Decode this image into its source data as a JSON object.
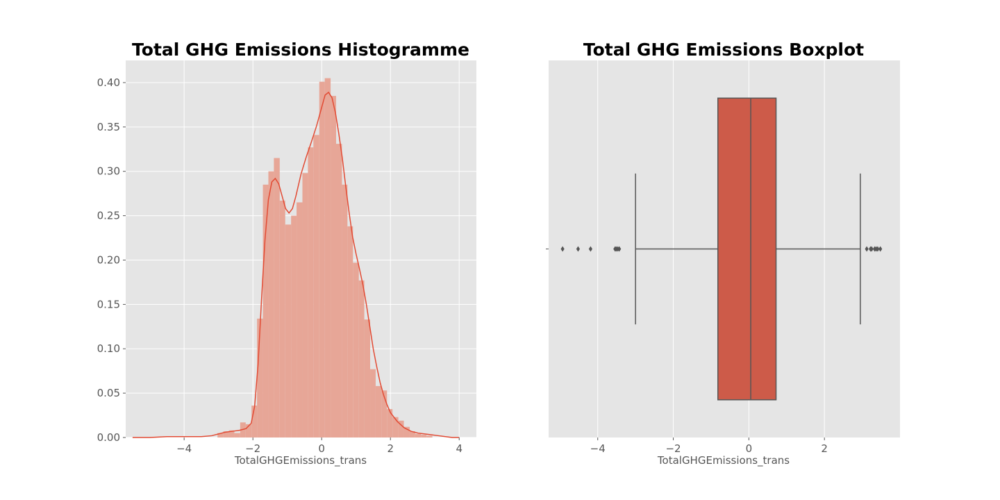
{
  "colors": {
    "figure_background": "#ffffff",
    "axes_background": "#e5e5e5",
    "grid": "#ffffff",
    "hist_fill": "#e7a697",
    "kde_line": "#e24a33",
    "box_fill": "#cd5b49",
    "box_edge": "#555555",
    "tick_text": "#555555",
    "title_text": "#000000"
  },
  "chart_data": [
    {
      "type": "histogram",
      "title": "Total GHG Emissions Histogramme",
      "xlabel": "TotalGHGEmissions_trans",
      "ylabel": "",
      "xlim": [
        -5.7,
        4.5
      ],
      "ylim": [
        0,
        0.425
      ],
      "xticks": [
        -4,
        -2,
        0,
        2,
        4
      ],
      "xtick_labels": [
        "−4",
        "−2",
        "0",
        "2",
        "4"
      ],
      "yticks": [
        0,
        0.05,
        0.1,
        0.15,
        0.2,
        0.25,
        0.3,
        0.35,
        0.4
      ],
      "ytick_labels": [
        "0.00",
        "0.05",
        "0.10",
        "0.15",
        "0.20",
        "0.25",
        "0.30",
        "0.35",
        "0.40"
      ],
      "grid": true,
      "bins": [
        {
          "x0": -3.03,
          "x1": -2.86,
          "y": 0.005
        },
        {
          "x0": -2.86,
          "x1": -2.7,
          "y": 0.007
        },
        {
          "x0": -2.7,
          "x1": -2.54,
          "y": 0.008
        },
        {
          "x0": -2.54,
          "x1": -2.37,
          "y": 0.005
        },
        {
          "x0": -2.37,
          "x1": -2.21,
          "y": 0.017
        },
        {
          "x0": -2.21,
          "x1": -2.04,
          "y": 0.015
        },
        {
          "x0": -2.04,
          "x1": -1.88,
          "y": 0.036
        },
        {
          "x0": -1.88,
          "x1": -1.71,
          "y": 0.134
        },
        {
          "x0": -1.71,
          "x1": -1.55,
          "y": 0.285
        },
        {
          "x0": -1.55,
          "x1": -1.39,
          "y": 0.3
        },
        {
          "x0": -1.39,
          "x1": -1.22,
          "y": 0.315
        },
        {
          "x0": -1.22,
          "x1": -1.06,
          "y": 0.267
        },
        {
          "x0": -1.06,
          "x1": -0.89,
          "y": 0.24
        },
        {
          "x0": -0.89,
          "x1": -0.73,
          "y": 0.25
        },
        {
          "x0": -0.73,
          "x1": -0.56,
          "y": 0.265
        },
        {
          "x0": -0.56,
          "x1": -0.4,
          "y": 0.298
        },
        {
          "x0": -0.4,
          "x1": -0.24,
          "y": 0.327
        },
        {
          "x0": -0.24,
          "x1": -0.07,
          "y": 0.341
        },
        {
          "x0": -0.07,
          "x1": 0.09,
          "y": 0.401
        },
        {
          "x0": 0.09,
          "x1": 0.26,
          "y": 0.405
        },
        {
          "x0": 0.26,
          "x1": 0.42,
          "y": 0.385
        },
        {
          "x0": 0.42,
          "x1": 0.59,
          "y": 0.331
        },
        {
          "x0": 0.59,
          "x1": 0.75,
          "y": 0.285
        },
        {
          "x0": 0.75,
          "x1": 0.91,
          "y": 0.238
        },
        {
          "x0": 0.91,
          "x1": 1.08,
          "y": 0.197
        },
        {
          "x0": 1.08,
          "x1": 1.24,
          "y": 0.177
        },
        {
          "x0": 1.24,
          "x1": 1.41,
          "y": 0.133
        },
        {
          "x0": 1.41,
          "x1": 1.57,
          "y": 0.077
        },
        {
          "x0": 1.57,
          "x1": 1.74,
          "y": 0.058
        },
        {
          "x0": 1.74,
          "x1": 1.9,
          "y": 0.053
        },
        {
          "x0": 1.9,
          "x1": 2.06,
          "y": 0.032
        },
        {
          "x0": 2.06,
          "x1": 2.23,
          "y": 0.023
        },
        {
          "x0": 2.23,
          "x1": 2.39,
          "y": 0.019
        },
        {
          "x0": 2.39,
          "x1": 2.56,
          "y": 0.012
        },
        {
          "x0": 2.56,
          "x1": 2.72,
          "y": 0.007
        },
        {
          "x0": 2.72,
          "x1": 2.89,
          "y": 0.004
        },
        {
          "x0": 2.89,
          "x1": 3.05,
          "y": 0.003
        },
        {
          "x0": 3.05,
          "x1": 3.22,
          "y": 0.002
        }
      ],
      "kde": {
        "x": [
          -5.5,
          -5.0,
          -4.5,
          -4.0,
          -3.5,
          -3.2,
          -3.0,
          -2.8,
          -2.6,
          -2.4,
          -2.2,
          -2.05,
          -1.95,
          -1.85,
          -1.75,
          -1.65,
          -1.55,
          -1.45,
          -1.35,
          -1.25,
          -1.15,
          -1.05,
          -0.95,
          -0.85,
          -0.75,
          -0.6,
          -0.45,
          -0.3,
          -0.15,
          0.0,
          0.1,
          0.2,
          0.3,
          0.4,
          0.5,
          0.6,
          0.7,
          0.8,
          0.9,
          1.0,
          1.1,
          1.2,
          1.3,
          1.4,
          1.5,
          1.6,
          1.7,
          1.8,
          1.9,
          2.0,
          2.2,
          2.4,
          2.6,
          2.8,
          3.0,
          3.2,
          3.4,
          3.6,
          3.8,
          4.0
        ],
        "y": [
          0.0,
          0.0,
          0.001,
          0.001,
          0.001,
          0.002,
          0.004,
          0.006,
          0.007,
          0.008,
          0.01,
          0.016,
          0.035,
          0.082,
          0.155,
          0.222,
          0.268,
          0.288,
          0.292,
          0.286,
          0.272,
          0.258,
          0.253,
          0.258,
          0.272,
          0.297,
          0.316,
          0.333,
          0.351,
          0.372,
          0.386,
          0.389,
          0.383,
          0.366,
          0.342,
          0.315,
          0.283,
          0.253,
          0.226,
          0.207,
          0.19,
          0.172,
          0.15,
          0.125,
          0.1,
          0.08,
          0.062,
          0.048,
          0.037,
          0.028,
          0.018,
          0.011,
          0.007,
          0.005,
          0.004,
          0.003,
          0.002,
          0.001,
          0.0,
          0.0
        ]
      }
    },
    {
      "type": "boxplot",
      "title": "Total GHG Emissions Boxplot",
      "xlabel": "TotalGHGEmissions_trans",
      "ylabel": "",
      "xlim": [
        -5.3,
        4.0
      ],
      "xticks": [
        -4,
        -2,
        0,
        2
      ],
      "xtick_labels": [
        "−4",
        "−2",
        "0",
        "2"
      ],
      "grid": true,
      "box": {
        "whisker_low": -3.0,
        "q1": -0.82,
        "median": 0.05,
        "q3": 0.72,
        "whisker_high": 2.95
      },
      "outliers": [
        -4.93,
        -4.52,
        -4.19,
        -3.54,
        -3.51,
        -3.47,
        -3.43,
        3.12,
        3.22,
        3.25,
        3.33,
        3.37,
        3.41,
        3.48
      ]
    }
  ]
}
